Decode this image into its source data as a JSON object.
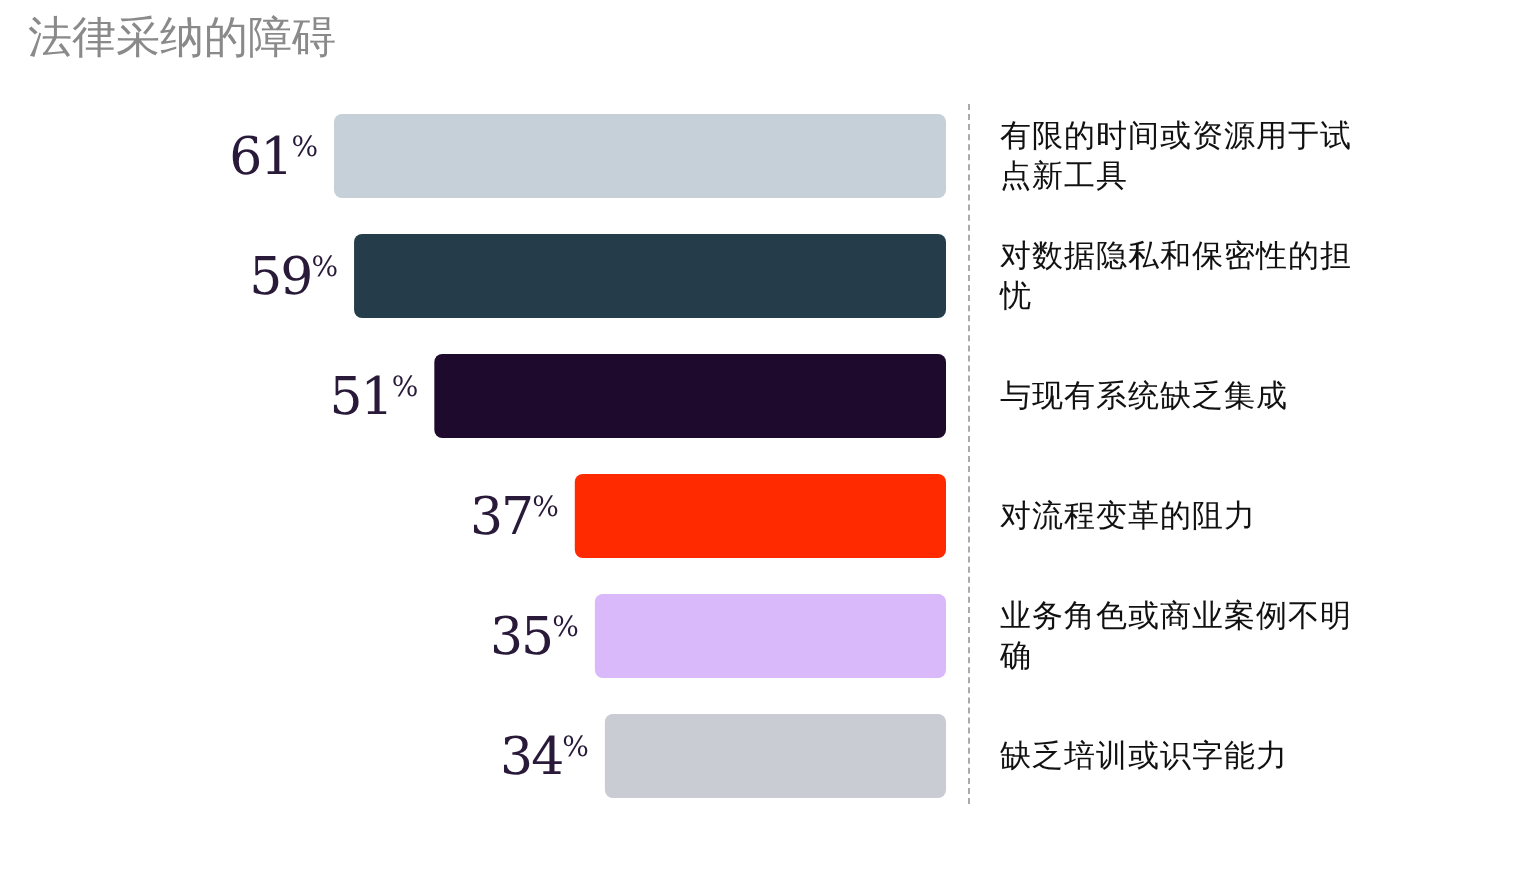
{
  "chart_data": {
    "type": "bar",
    "orientation": "horizontal",
    "title": "法律采纳的障碍",
    "categories": [
      "有限的时间或资源用于试点新工具",
      "对数据隐私和保密性的担忧",
      "与现有系统缺乏集成",
      "对流程变革的阻力",
      "业务角色或商业案例不明确",
      "缺乏培训或识字能力"
    ],
    "values": [
      61,
      59,
      51,
      37,
      35,
      34
    ],
    "colors": [
      "#c5d0d8",
      "#253d4a",
      "#1e0a2c",
      "#ff2a00",
      "#d9b9f9",
      "#c9ccd2"
    ],
    "value_labels": [
      "61$^{%}$",
      "59$^{%}$",
      "51$^{%}$",
      "37$^{%}$",
      "35$^{%}$",
      "34$^{%}$"
    ]
  }
}
